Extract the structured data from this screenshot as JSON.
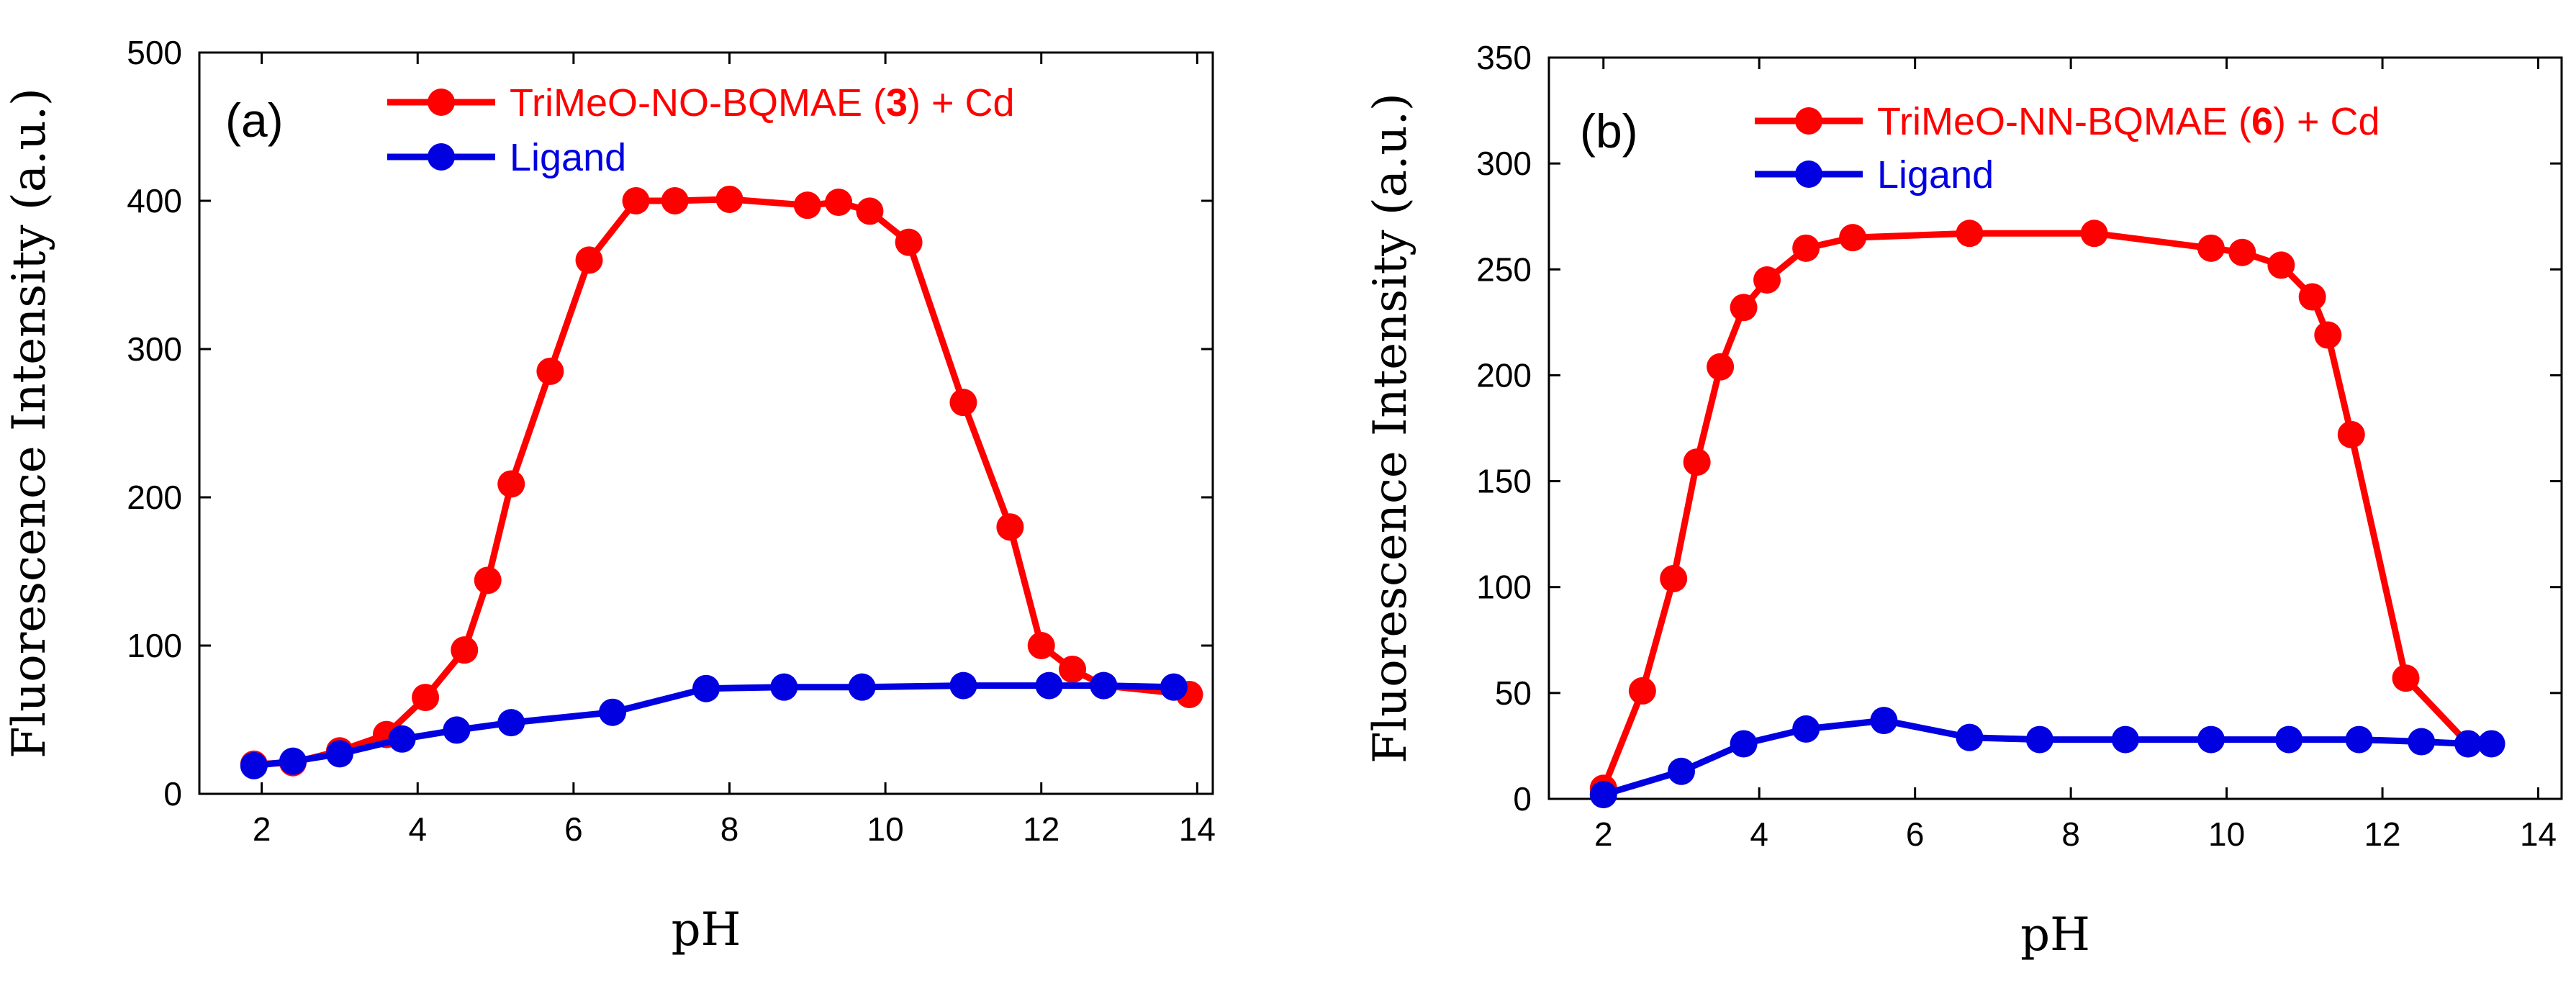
{
  "colors": {
    "red": "#ff0000",
    "blue": "#0000e0",
    "axis": "#000000"
  },
  "chart_data": [
    {
      "type": "line",
      "panel_label": "(a)",
      "xlabel": "pH",
      "ylabel": "Fluorescence Intensity (a.u.)",
      "xlim": [
        1.2,
        14.2
      ],
      "ylim": [
        0,
        500
      ],
      "xticks": [
        2,
        4,
        6,
        8,
        10,
        12,
        14
      ],
      "yticks": [
        0,
        100,
        200,
        300,
        400,
        500
      ],
      "xtick_labels": [
        "2",
        "4",
        "6",
        "8",
        "10",
        "12",
        "14"
      ],
      "ytick_labels": [
        "0",
        "100",
        "200",
        "300",
        "400",
        "500"
      ],
      "legend_position": "top-right",
      "series": [
        {
          "name": "TriMeO-NO-BQMAE (3) + Cd",
          "legend_prefix": "TriMeO-NO-BQMAE (",
          "legend_bold": "3",
          "legend_suffix": ") + Cd",
          "color": "#ff0000",
          "x": [
            1.9,
            2.4,
            3.0,
            3.6,
            4.1,
            4.6,
            4.9,
            5.2,
            5.7,
            6.2,
            6.8,
            7.3,
            8.0,
            9.0,
            9.4,
            9.8,
            10.3,
            11.0,
            11.6,
            12.0,
            12.4,
            12.8,
            13.9
          ],
          "y": [
            20,
            21,
            29,
            40,
            65,
            97,
            144,
            209,
            285,
            360,
            400,
            400,
            401,
            397,
            399,
            393,
            372,
            264,
            180,
            100,
            84,
            73,
            67
          ]
        },
        {
          "name": "Ligand",
          "legend_prefix": "Ligand",
          "legend_bold": "",
          "legend_suffix": "",
          "color": "#0000e0",
          "x": [
            1.9,
            2.4,
            3.0,
            3.8,
            4.5,
            5.2,
            6.5,
            7.7,
            8.7,
            9.7,
            11.0,
            12.1,
            12.8,
            13.7
          ],
          "y": [
            19,
            22,
            27,
            37,
            43,
            48,
            55,
            71,
            72,
            72,
            73,
            73,
            73,
            72
          ]
        }
      ]
    },
    {
      "type": "line",
      "panel_label": "(b)",
      "xlabel": "pH",
      "ylabel": "Fluorescence Intensity (a.u.)",
      "xlim": [
        1.3,
        14.3
      ],
      "ylim": [
        0,
        350
      ],
      "xticks": [
        2,
        4,
        6,
        8,
        10,
        12,
        14
      ],
      "yticks": [
        0,
        50,
        100,
        150,
        200,
        250,
        300,
        350
      ],
      "xtick_labels": [
        "2",
        "4",
        "6",
        "8",
        "10",
        "12",
        "14"
      ],
      "ytick_labels": [
        "0",
        "50",
        "100",
        "150",
        "200",
        "250",
        "300",
        "350"
      ],
      "legend_position": "top-right",
      "series": [
        {
          "name": "TriMeO-NN-BQMAE (6) + Cd",
          "legend_prefix": "TriMeO-NN-BQMAE (",
          "legend_bold": "6",
          "legend_suffix": ") + Cd",
          "color": "#ff0000",
          "x": [
            2.0,
            2.5,
            2.9,
            3.2,
            3.5,
            3.8,
            4.1,
            4.6,
            5.2,
            6.7,
            8.3,
            9.8,
            10.2,
            10.7,
            11.1,
            11.3,
            11.6,
            12.3,
            13.1
          ],
          "y": [
            5,
            51,
            104,
            159,
            204,
            232,
            245,
            260,
            265,
            267,
            267,
            260,
            258,
            252,
            237,
            219,
            172,
            57,
            26
          ]
        },
        {
          "name": "Ligand",
          "legend_prefix": "Ligand",
          "legend_bold": "",
          "legend_suffix": "",
          "color": "#0000e0",
          "x": [
            2.0,
            3.0,
            3.8,
            4.6,
            5.6,
            6.7,
            7.6,
            8.7,
            9.8,
            10.8,
            11.7,
            12.5,
            13.1,
            13.4
          ],
          "y": [
            2,
            13,
            26,
            33,
            37,
            29,
            28,
            28,
            28,
            28,
            28,
            27,
            26,
            26
          ]
        }
      ]
    }
  ]
}
